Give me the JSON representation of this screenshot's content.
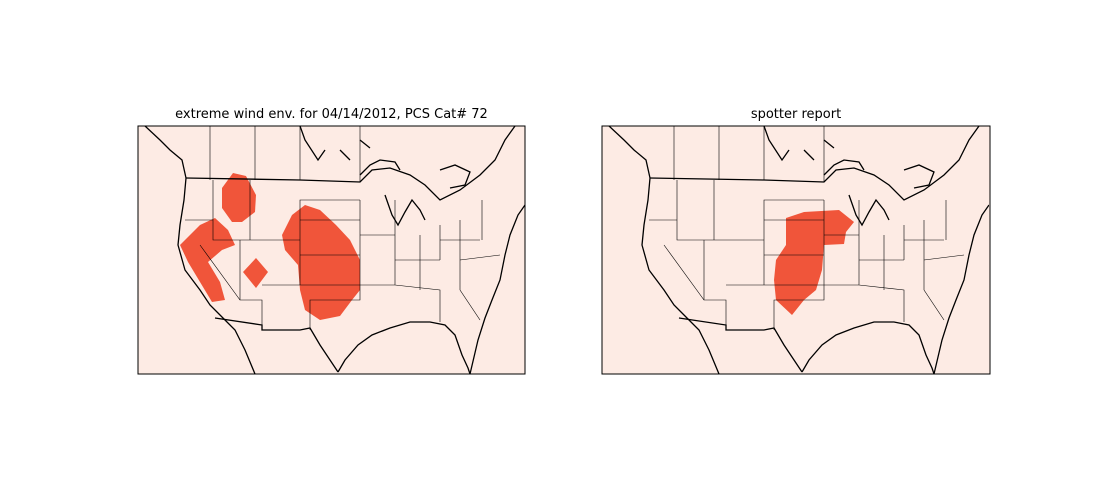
{
  "panels": [
    {
      "title": "extreme wind env. for 04/14/2012, PCS Cat# 72"
    },
    {
      "title": "spotter report"
    }
  ]
}
